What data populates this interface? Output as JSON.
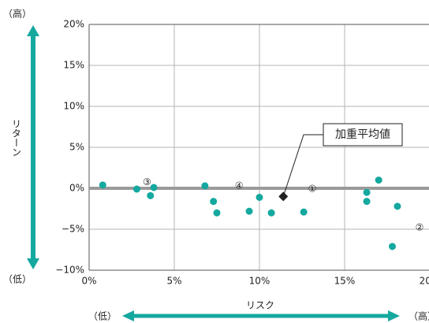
{
  "chart_data": {
    "type": "scatter",
    "x_label": "リスク",
    "y_label": "リターン",
    "x_low_label": "（低）",
    "x_high_label": "（高）",
    "y_low_label": "（低）",
    "y_high_label": "（高）",
    "x": [
      0.8,
      2.8,
      3.6,
      3.8,
      6.8,
      7.3,
      7.5,
      9.4,
      10.0,
      10.7,
      12.6,
      16.3,
      16.3,
      17.0,
      18.1,
      17.8
    ],
    "values": [
      0.4,
      -0.1,
      -0.9,
      0.1,
      0.3,
      -1.6,
      -3.0,
      -2.8,
      -1.1,
      -3.0,
      -2.9,
      -0.5,
      -1.6,
      1.0,
      -2.2,
      -7.1
    ],
    "color": "#14a89f",
    "highlight": {
      "label": "加重平均値",
      "x": 11.4,
      "y": -1.0,
      "color": "#222222"
    },
    "annotations": [
      {
        "text": "①",
        "x": 13.1,
        "y": -0.1
      },
      {
        "text": "②",
        "x": 19.4,
        "y": -4.8
      },
      {
        "text": "③",
        "x": 3.4,
        "y": 0.7
      },
      {
        "text": "④",
        "x": 8.8,
        "y": 0.3
      }
    ],
    "hline": 0,
    "hline_color": "#9a9a9a",
    "xlim": [
      0,
      20
    ],
    "xticks": [
      {
        "value": 0,
        "label": "0%"
      },
      {
        "value": 5,
        "label": "5%"
      },
      {
        "value": 10,
        "label": "10%"
      },
      {
        "value": 15,
        "label": "15%"
      },
      {
        "value": 20,
        "label": "20%"
      }
    ],
    "ylim": [
      -10,
      20
    ],
    "yticks": [
      {
        "value": -10,
        "label": "−10%"
      },
      {
        "value": -5,
        "label": "−5%"
      },
      {
        "value": 0,
        "label": "0%"
      },
      {
        "value": 5,
        "label": "5%"
      },
      {
        "value": 10,
        "label": "10%"
      },
      {
        "value": 15,
        "label": "15%"
      },
      {
        "value": 20,
        "label": "20%"
      }
    ],
    "grid": true,
    "arrow_color": "#14a89f"
  }
}
